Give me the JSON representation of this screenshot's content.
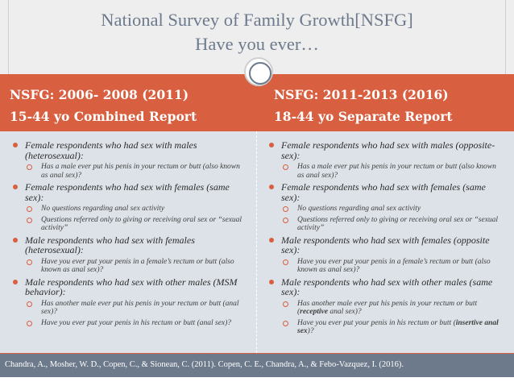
{
  "title": {
    "line1": "National  Survey of Family Growth[NSFG]",
    "line2": "Have you ever…"
  },
  "columns": [
    {
      "header_line1": "NSFG: 2006- 2008 (2011)",
      "header_line2": "15-44 yo Combined Report",
      "items": [
        {
          "text": "Female respondents who had sex with males (heterosexual):",
          "subs": [
            {
              "parts": [
                "Has a male ever put his penis in your rectum or butt (also known as anal sex)?"
              ]
            }
          ]
        },
        {
          "text": "Female respondents who had sex with females (same sex):",
          "subs": [
            {
              "parts": [
                "No questions regarding anal sex activity"
              ]
            },
            {
              "parts": [
                "Questions referred only to giving or receiving oral sex or “sexual activity”"
              ]
            }
          ]
        },
        {
          "text": "Male respondents who had sex with females (heterosexual):",
          "subs": [
            {
              "parts": [
                "Have you ever put your penis in a female’s rectum or butt (also known as anal sex)?"
              ]
            }
          ]
        },
        {
          "text": "Male respondents who had sex with other males (MSM behavior):",
          "subs": [
            {
              "parts": [
                "Has another male ever put his penis in your rectum or butt (anal sex)?"
              ]
            },
            {
              "parts": [
                "Have you ever put your penis in his rectum or butt (anal sex)?"
              ]
            }
          ]
        }
      ]
    },
    {
      "header_line1": "NSFG: 2011-2013 (2016)",
      "header_line2": "18-44 yo Separate Report",
      "items": [
        {
          "text": "Female respondents who had sex with males (opposite-sex):",
          "subs": [
            {
              "parts": [
                "Has a male ever put his penis in your rectum or butt (also known as anal sex)?"
              ]
            }
          ]
        },
        {
          "text": "Female respondents who had sex with females (same sex):",
          "subs": [
            {
              "parts": [
                "No questions regarding anal sex activity"
              ]
            },
            {
              "parts": [
                "Questions referred only to giving or receiving oral sex or “sexual activity”"
              ]
            }
          ]
        },
        {
          "text": "Male respondents who had sex with females (opposite sex):",
          "subs": [
            {
              "parts": [
                "Have you ever put your penis in a female’s rectum or butt (also known as anal sex)?"
              ]
            }
          ]
        },
        {
          "text": "Male respondents who had sex with other males (same sex):",
          "subs": [
            {
              "parts": [
                "Has another male ever put his penis in your rectum or butt (",
                "receptive",
                " anal sex)?"
              ]
            },
            {
              "parts": [
                "Have you ever put your penis in his rectum or butt (",
                "insertive anal sex",
                ")?"
              ]
            }
          ]
        }
      ]
    }
  ],
  "citation": "Chandra, A., Mosher, W. D., Copen, C., & Sionean, C. (2011). Copen, C. E., Chandra, A., & Febo-Vazquez, I. (2016).",
  "colors": {
    "accent": "#d85f3f",
    "title": "#6d7a8c",
    "content_bg": "#dde2e8",
    "citation_bg": "#6d7a8c"
  }
}
